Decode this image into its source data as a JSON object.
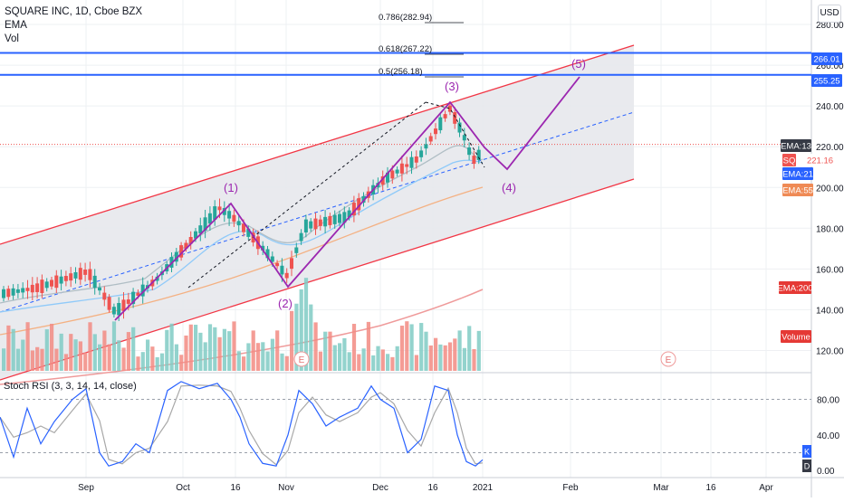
{
  "legend": {
    "symbol": "SQUARE INC, 1D, Cboe BZX",
    "ema": "EMA",
    "vol": "Vol"
  },
  "stoch_legend": "Stoch RSI (3, 3, 14, 14, close)",
  "currency": "USD",
  "price_axis": [
    "280.00",
    "260.00",
    "240.00",
    "220.00",
    "200.00",
    "180.00",
    "160.00",
    "140.00",
    "120.00"
  ],
  "stoch_axis": [
    "80.00",
    "40.00",
    "0.00"
  ],
  "time_axis": [
    "Sep",
    "Oct",
    "16",
    "Nov",
    "Dec",
    "16",
    "2021",
    "Feb",
    "Mar",
    "16",
    "Apr"
  ],
  "fib_labels": [
    "0.786(282.94)",
    "0.618(267.22)",
    "0.5(256.18)"
  ],
  "wave_labels": [
    "(1)",
    "(2)",
    "(3)",
    "(4)",
    "(5)"
  ],
  "earnings_marker": "E",
  "price_tags": [
    {
      "text": "266.01",
      "bg": "#2962ff",
      "fg": "#ffffff"
    },
    {
      "text": "255.25",
      "bg": "#2962ff",
      "fg": "#ffffff"
    },
    {
      "text": "EMA:13",
      "bg": "#363a45",
      "fg": "#ffffff"
    },
    {
      "text": "SQ",
      "bg": "#ef5350",
      "fg": "#ffffff"
    },
    {
      "text": "221.16",
      "bg": "#ffffff",
      "fg": "#ef5350"
    },
    {
      "text": "EMA:21",
      "bg": "#2962ff",
      "fg": "#ffffff"
    },
    {
      "text": "EMA:55",
      "bg": "#ef8a55",
      "fg": "#ffffff"
    },
    {
      "text": "EMA:200",
      "bg": "#e53935",
      "fg": "#ffffff"
    },
    {
      "text": "Volume",
      "bg": "#e53935",
      "fg": "#ffffff"
    }
  ],
  "stoch_tags": [
    {
      "text": "K",
      "bg": "#2962ff",
      "fg": "#ffffff"
    },
    {
      "text": "D",
      "bg": "#363a45",
      "fg": "#ffffff"
    }
  ],
  "colors": {
    "up": "#26a69a",
    "down": "#ef5350",
    "channel": "#f23645",
    "wave": "#9c27b0",
    "hline": "#2962ff",
    "grid": "#eef0f3"
  },
  "chart_data": {
    "type": "candlestick",
    "price_range": [
      110,
      292
    ],
    "stoch_range": [
      -8,
      108
    ],
    "horizontal_lines": [
      266.01,
      255.25
    ],
    "last_price": 221.16
  }
}
